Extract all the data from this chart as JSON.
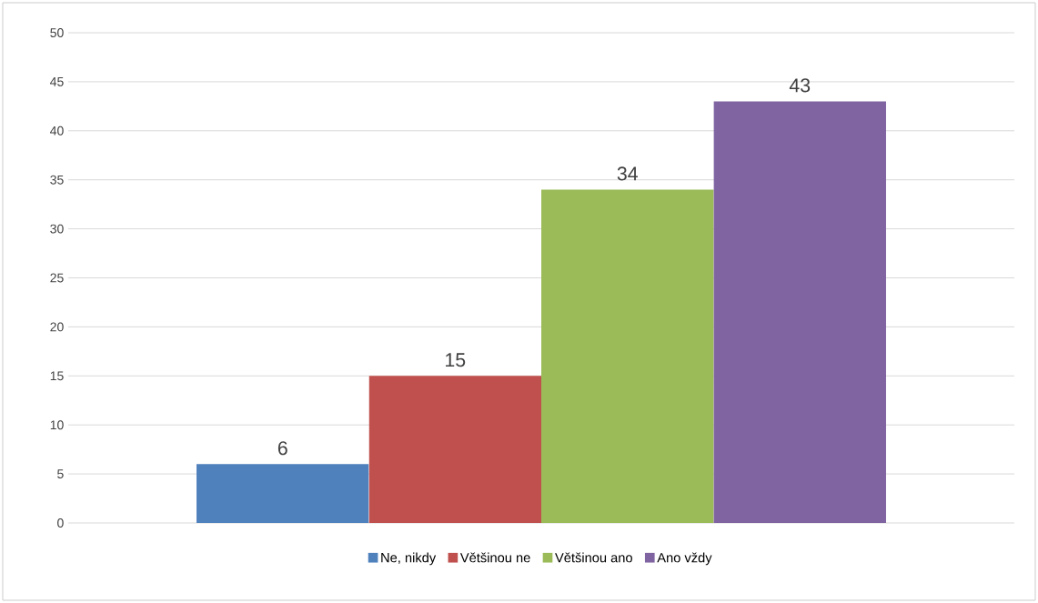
{
  "chart_data": {
    "type": "bar",
    "categories": [
      null
    ],
    "series": [
      {
        "name": "Ne, nikdy",
        "color": "#4f81bd",
        "values": [
          6
        ]
      },
      {
        "name": "Většinou ne",
        "color": "#c0504d",
        "values": [
          15
        ]
      },
      {
        "name": "Většinou ano",
        "color": "#9bbb59",
        "values": [
          34
        ]
      },
      {
        "name": "Ano vždy",
        "color": "#8064a2",
        "values": [
          43
        ]
      }
    ],
    "ylim": [
      0,
      50
    ],
    "yticks": [
      0,
      5,
      10,
      15,
      20,
      25,
      30,
      35,
      40,
      45,
      50
    ],
    "grid": "y",
    "legend": "bottom",
    "data_labels": true
  }
}
